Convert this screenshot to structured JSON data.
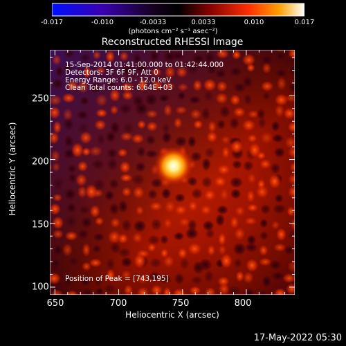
{
  "colorbar": {
    "ticks": [
      "-0.017",
      "-0.010",
      "-0.0033",
      "0.0033",
      "0.010",
      "0.017"
    ],
    "units": "(photons cm⁻² s⁻¹ asec⁻²)",
    "colors": [
      "#0000ff",
      "#2a00a0",
      "#000000",
      "#7a0000",
      "#ff3000",
      "#ffb000",
      "#ffffff"
    ]
  },
  "image": {
    "title": "Reconstructed RHESSI Image",
    "xlabel": "Heliocentric X (arcsec)",
    "ylabel": "Heliocentric Y (arcsec)",
    "x_ticks": [
      "650",
      "700",
      "750",
      "800"
    ],
    "y_ticks": [
      "100",
      "150",
      "200",
      "250"
    ],
    "xlim": [
      646,
      838
    ],
    "ylim": [
      94,
      286
    ],
    "peak_x": 743,
    "peak_y": 195
  },
  "info": {
    "line1": "15-Sep-2014 01:41:00.000 to 01:42:44.000",
    "line2": "Detectors: 3F 6F 9F, Att 0",
    "line3": "Energy Range: 6.0 - 12.0 keV",
    "line4": "Clean    Total counts: 6.64E+03",
    "peak": "Position of Peak = [743,195]"
  },
  "footer": {
    "datestamp": "17-May-2022 05:30"
  }
}
